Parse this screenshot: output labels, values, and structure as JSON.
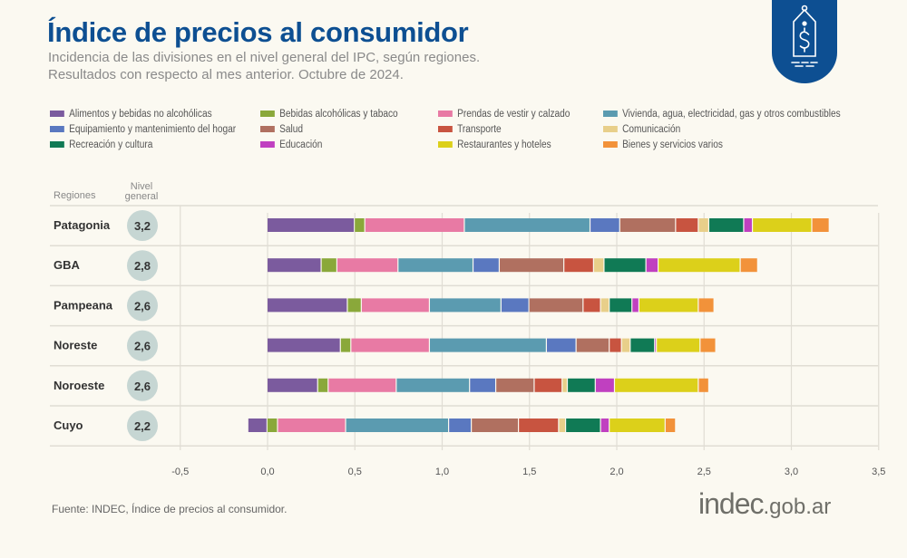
{
  "header": {
    "title": "Índice de precios al consumidor",
    "subtitle_1": "Incidencia de las divisiones en el nivel general del IPC, según regiones.",
    "subtitle_2": "Resultados con respecto al mes anterior. Octubre de 2024.",
    "badge_icon": "price-tag-dollar-icon"
  },
  "colors": {
    "title": "#0d4f92",
    "background": "#fbf9f1",
    "badge": "#0d4f92",
    "level_circle": "#c6d6d3"
  },
  "table": {
    "col_regions": "Regiones",
    "col_level_1": "Nivel",
    "col_level_2": "general"
  },
  "chart_data": {
    "type": "bar",
    "orientation": "horizontal",
    "stacked": true,
    "xlim": [
      -0.5,
      3.5
    ],
    "x_ticks": [
      "-0,5",
      "0,0",
      "0,5",
      "1,0",
      "1,5",
      "2,0",
      "2,5",
      "3,0",
      "3,5"
    ],
    "x_tick_values": [
      -0.5,
      0,
      0.5,
      1,
      1.5,
      2,
      2.5,
      3,
      3.5
    ],
    "grid": true,
    "legend_position": "top",
    "categories": [
      "Patagonia",
      "GBA",
      "Pampeana",
      "Noreste",
      "Noroeste",
      "Cuyo"
    ],
    "nivel_general": [
      "3,2",
      "2,8",
      "2,6",
      "2,6",
      "2,6",
      "2,2"
    ],
    "series": [
      {
        "name": "Alimentos y bebidas no alcohólicas",
        "color": "#7b5b9e",
        "values": [
          0.5,
          0.31,
          0.46,
          0.42,
          0.29,
          -0.11
        ]
      },
      {
        "name": "Bebidas alcohólicas y tabaco",
        "color": "#8aa83a",
        "values": [
          0.06,
          0.09,
          0.08,
          0.06,
          0.06,
          0.06
        ]
      },
      {
        "name": "Prendas de vestir y calzado",
        "color": "#e87aa4",
        "values": [
          0.57,
          0.35,
          0.39,
          0.45,
          0.39,
          0.39
        ]
      },
      {
        "name": "Vivienda, agua, electricidad, gas y otros combustibles",
        "color": "#5b9bb0",
        "values": [
          0.72,
          0.43,
          0.41,
          0.67,
          0.42,
          0.59
        ]
      },
      {
        "name": "Equipamiento y mantenimiento del hogar",
        "color": "#5a78c0",
        "values": [
          0.17,
          0.15,
          0.16,
          0.17,
          0.15,
          0.13
        ]
      },
      {
        "name": "Salud",
        "color": "#b07060",
        "values": [
          0.32,
          0.37,
          0.31,
          0.19,
          0.22,
          0.27
        ]
      },
      {
        "name": "Transporte",
        "color": "#c85440",
        "values": [
          0.13,
          0.17,
          0.1,
          0.07,
          0.16,
          0.23
        ]
      },
      {
        "name": "Comunicación",
        "color": "#e8cf8a",
        "values": [
          0.06,
          0.06,
          0.05,
          0.05,
          0.03,
          0.04
        ]
      },
      {
        "name": "Recreación y cultura",
        "color": "#107a55",
        "values": [
          0.2,
          0.24,
          0.13,
          0.14,
          0.16,
          0.2
        ]
      },
      {
        "name": "Educación",
        "color": "#c040c0",
        "values": [
          0.05,
          0.07,
          0.04,
          0.01,
          0.11,
          0.05
        ]
      },
      {
        "name": "Restaurantes y hoteles",
        "color": "#dcd01a",
        "values": [
          0.34,
          0.47,
          0.34,
          0.25,
          0.48,
          0.32
        ]
      },
      {
        "name": "Bienes y servicios varios",
        "color": "#f2923a",
        "values": [
          0.1,
          0.1,
          0.09,
          0.09,
          0.06,
          0.06
        ]
      }
    ]
  },
  "footer": {
    "source": "Fuente: INDEC, Índice de precios al consumidor.",
    "logo_main": "indec",
    "logo_domain": ".gob.ar"
  }
}
